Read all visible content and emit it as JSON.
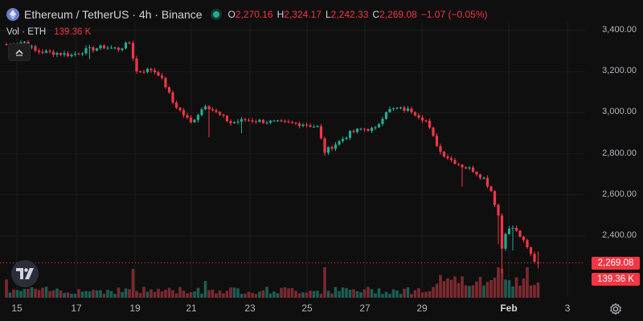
{
  "header": {
    "title": "Ethereum / TetherUS · 4h · Binance",
    "ohlc": [
      {
        "key": "O",
        "value": "2,270.16"
      },
      {
        "key": "H",
        "value": "2,324.17"
      },
      {
        "key": "L",
        "value": "2,242.33"
      },
      {
        "key": "C",
        "value": "2,269.08"
      },
      {
        "key": "",
        "value": "−1.07 (−0.05%)"
      }
    ]
  },
  "volume_legend": {
    "label": "Vol · ETH",
    "value": "139.36 K"
  },
  "price_axis": {
    "ticks": [
      "3,400.00",
      "3,200.00",
      "3,000.00",
      "2,800.00",
      "2,600.00",
      "2,400.00"
    ]
  },
  "price_tags": {
    "last_price": "2,269.08",
    "last_volume": "139.36 K"
  },
  "time_axis": {
    "ticks": [
      "15",
      "17",
      "19",
      "21",
      "23",
      "25",
      "27",
      "29",
      "Feb",
      "3"
    ]
  },
  "colors": {
    "up": "#22ab94",
    "down": "#f23645",
    "background": "#0f0f0f",
    "grid": "#1c1c1c",
    "text": "#b2b5be"
  },
  "icons": {
    "logo": "ethereum-logo-icon",
    "collapse": "chevron-up-icon",
    "settings": "gear-icon",
    "brand": "tradingview-logo-icon"
  },
  "chart_data": {
    "type": "candlestick",
    "title": "Ethereum / TetherUS · 4h · Binance",
    "ylim": [
      2200,
      3460
    ],
    "x_ticks": [
      "15",
      "17",
      "19",
      "21",
      "23",
      "25",
      "27",
      "29",
      "Feb",
      "3"
    ],
    "grid": true,
    "anchors": [
      {
        "i": 0,
        "p": 3330
      },
      {
        "i": 5,
        "p": 3345
      },
      {
        "i": 8,
        "p": 3300
      },
      {
        "i": 14,
        "p": 3290
      },
      {
        "i": 18,
        "p": 3280
      },
      {
        "i": 22,
        "p": 3305
      },
      {
        "i": 27,
        "p": 3320
      },
      {
        "i": 31,
        "p": 3310
      },
      {
        "i": 34,
        "p": 3340
      },
      {
        "i": 36,
        "p": 3200
      },
      {
        "i": 40,
        "p": 3210
      },
      {
        "i": 42,
        "p": 3190
      },
      {
        "i": 44,
        "p": 3130
      },
      {
        "i": 46,
        "p": 3050
      },
      {
        "i": 48,
        "p": 3010
      },
      {
        "i": 51,
        "p": 2950
      },
      {
        "i": 55,
        "p": 3040
      },
      {
        "i": 58,
        "p": 3000
      },
      {
        "i": 62,
        "p": 2950
      },
      {
        "i": 66,
        "p": 2965
      },
      {
        "i": 70,
        "p": 2960
      },
      {
        "i": 76,
        "p": 2950
      },
      {
        "i": 82,
        "p": 2945
      },
      {
        "i": 86,
        "p": 2930
      },
      {
        "i": 88,
        "p": 2810
      },
      {
        "i": 92,
        "p": 2860
      },
      {
        "i": 95,
        "p": 2900
      },
      {
        "i": 98,
        "p": 2920
      },
      {
        "i": 102,
        "p": 2920
      },
      {
        "i": 105,
        "p": 3010
      },
      {
        "i": 108,
        "p": 3020
      },
      {
        "i": 112,
        "p": 3010
      },
      {
        "i": 116,
        "p": 2960
      },
      {
        "i": 118,
        "p": 2880
      },
      {
        "i": 120,
        "p": 2810
      },
      {
        "i": 123,
        "p": 2770
      },
      {
        "i": 126,
        "p": 2740
      },
      {
        "i": 129,
        "p": 2720
      },
      {
        "i": 132,
        "p": 2680
      },
      {
        "i": 134,
        "p": 2620
      },
      {
        "i": 136,
        "p": 2500
      },
      {
        "i": 137,
        "p": 2340
      },
      {
        "i": 138,
        "p": 2420
      },
      {
        "i": 140,
        "p": 2440
      },
      {
        "i": 142,
        "p": 2400
      },
      {
        "i": 144,
        "p": 2340
      },
      {
        "i": 146,
        "p": 2280
      },
      {
        "i": 147,
        "p": 2269
      }
    ],
    "spikes": [
      {
        "i": 23,
        "low": 3260
      },
      {
        "i": 56,
        "low": 2880
      },
      {
        "i": 65,
        "low": 2900
      },
      {
        "i": 88,
        "low": 2790
      },
      {
        "i": 126,
        "low": 2640
      },
      {
        "i": 136,
        "low": 2360
      },
      {
        "i": 137,
        "low": 2220
      },
      {
        "i": 140,
        "low": 2330
      }
    ],
    "volume_spikes": [
      {
        "i": 0,
        "v": 0.6
      },
      {
        "i": 35,
        "v": 0.95
      },
      {
        "i": 55,
        "v": 0.55
      },
      {
        "i": 88,
        "v": 1.0
      },
      {
        "i": 120,
        "v": 0.75
      },
      {
        "i": 126,
        "v": 0.7
      },
      {
        "i": 136,
        "v": 1.0
      },
      {
        "i": 137,
        "v": 0.95
      },
      {
        "i": 144,
        "v": 1.0
      }
    ]
  }
}
